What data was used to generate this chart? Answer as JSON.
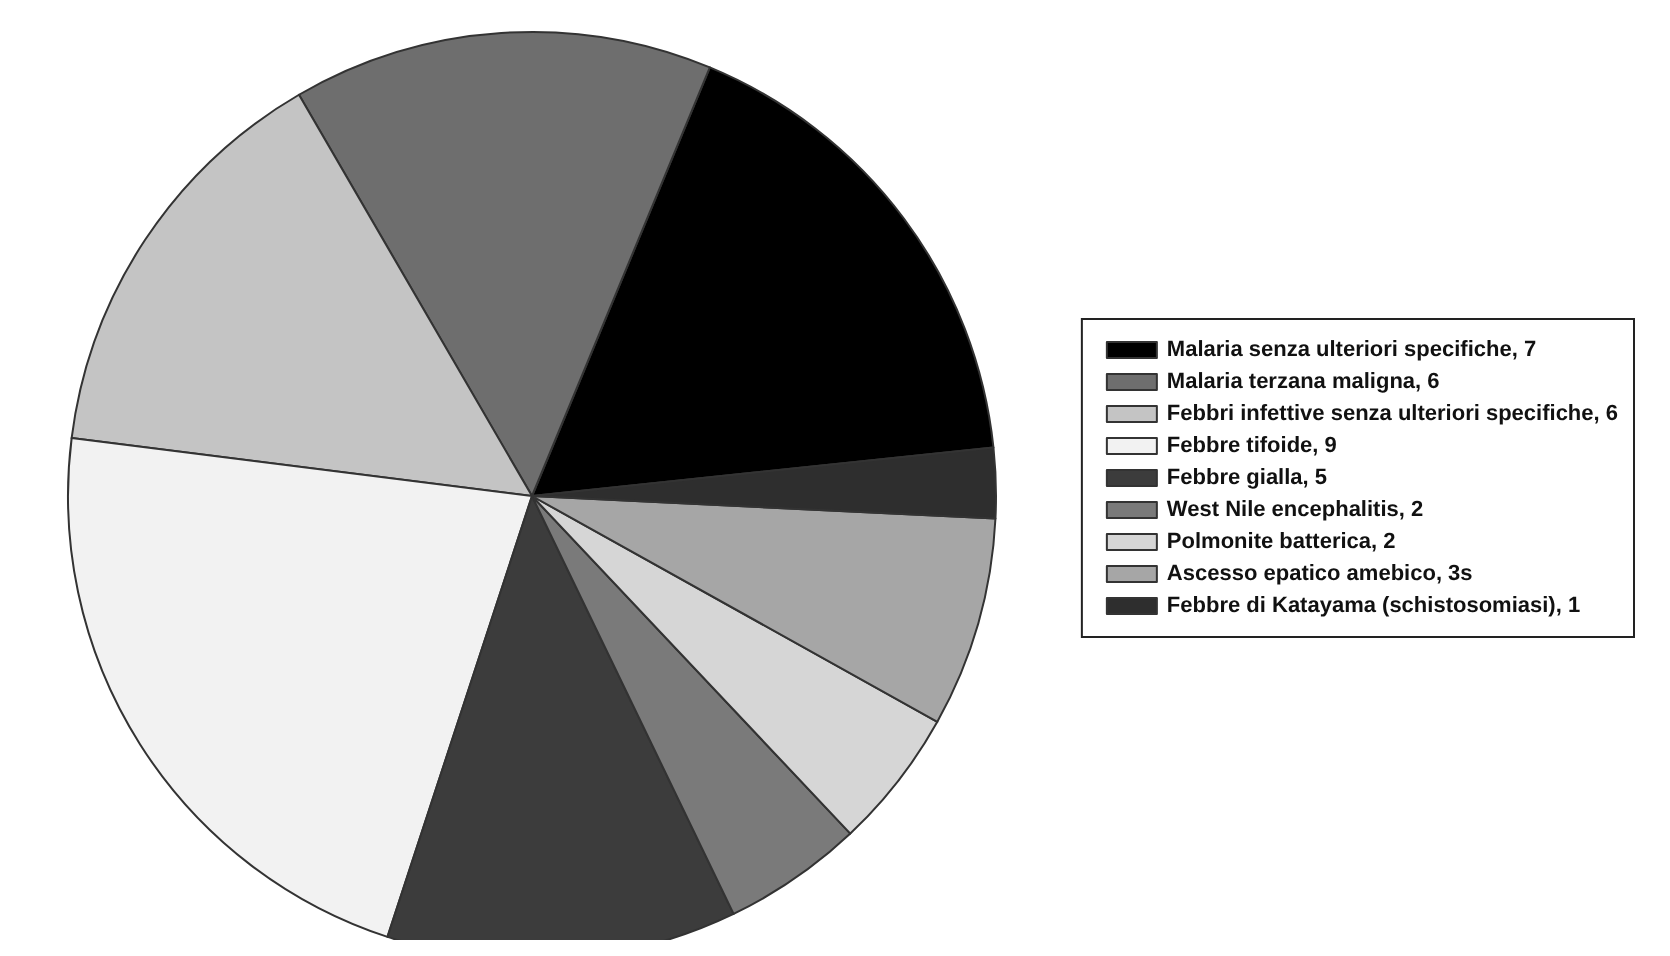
{
  "chart_data": {
    "type": "pie",
    "categories": [
      "Malaria senza ulteriori specifiche, 7",
      "Malaria terzana maligna, 6",
      "Febbri infettive senza ulteriori specifiche, 6",
      "Febbre tifoide, 9",
      "Febbre gialla, 5",
      "West Nile encephalitis, 2",
      "Polmonite batterica, 2",
      "Ascesso epatico amebico, 3s",
      "Febbre di Katayama (schistosomiasi), 1"
    ],
    "values": [
      7,
      6,
      6,
      9,
      5,
      2,
      2,
      3,
      1
    ],
    "colors": [
      "#000000",
      "#6e6e6e",
      "#c4c4c4",
      "#f2f2f2",
      "#3c3c3c",
      "#7a7a7a",
      "#d6d6d6",
      "#a6a6a6",
      "#2e2e2e"
    ],
    "legend": "right"
  }
}
